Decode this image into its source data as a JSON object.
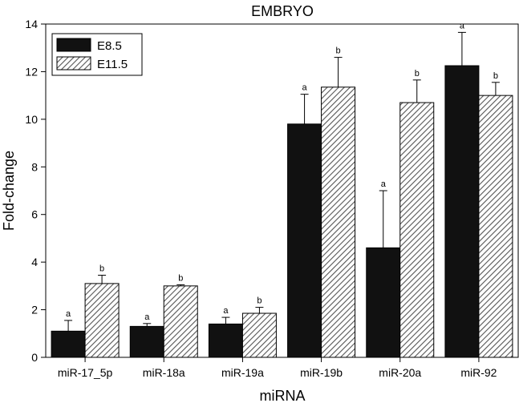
{
  "chart_data": {
    "type": "bar",
    "title": "EMBRYO",
    "xlabel": "miRNA",
    "ylabel": "Fold-change",
    "ylim": [
      0,
      14
    ],
    "yticks": [
      0,
      2,
      4,
      6,
      8,
      10,
      12,
      14
    ],
    "categories": [
      "miR-17_5p",
      "miR-18a",
      "miR-19a",
      "miR-19b",
      "miR-20a",
      "miR-92"
    ],
    "series": [
      {
        "name": "E8.5",
        "values": [
          1.1,
          1.3,
          1.4,
          9.8,
          4.6,
          12.25
        ],
        "errors": [
          0.45,
          0.12,
          0.28,
          1.25,
          2.4,
          1.4
        ],
        "labels": [
          "a",
          "a",
          "a",
          "a",
          "a",
          "a"
        ],
        "color": "#111111",
        "pattern": "solid"
      },
      {
        "name": "E11.5",
        "values": [
          3.1,
          3.0,
          1.85,
          11.35,
          10.7,
          11.0
        ],
        "errors": [
          0.35,
          0.05,
          0.25,
          1.25,
          0.95,
          0.55
        ],
        "labels": [
          "b",
          "b",
          "b",
          "b",
          "b",
          "b"
        ],
        "color": "#555555",
        "pattern": "hatched"
      }
    ],
    "legend_position": "top-left",
    "grid": false
  }
}
